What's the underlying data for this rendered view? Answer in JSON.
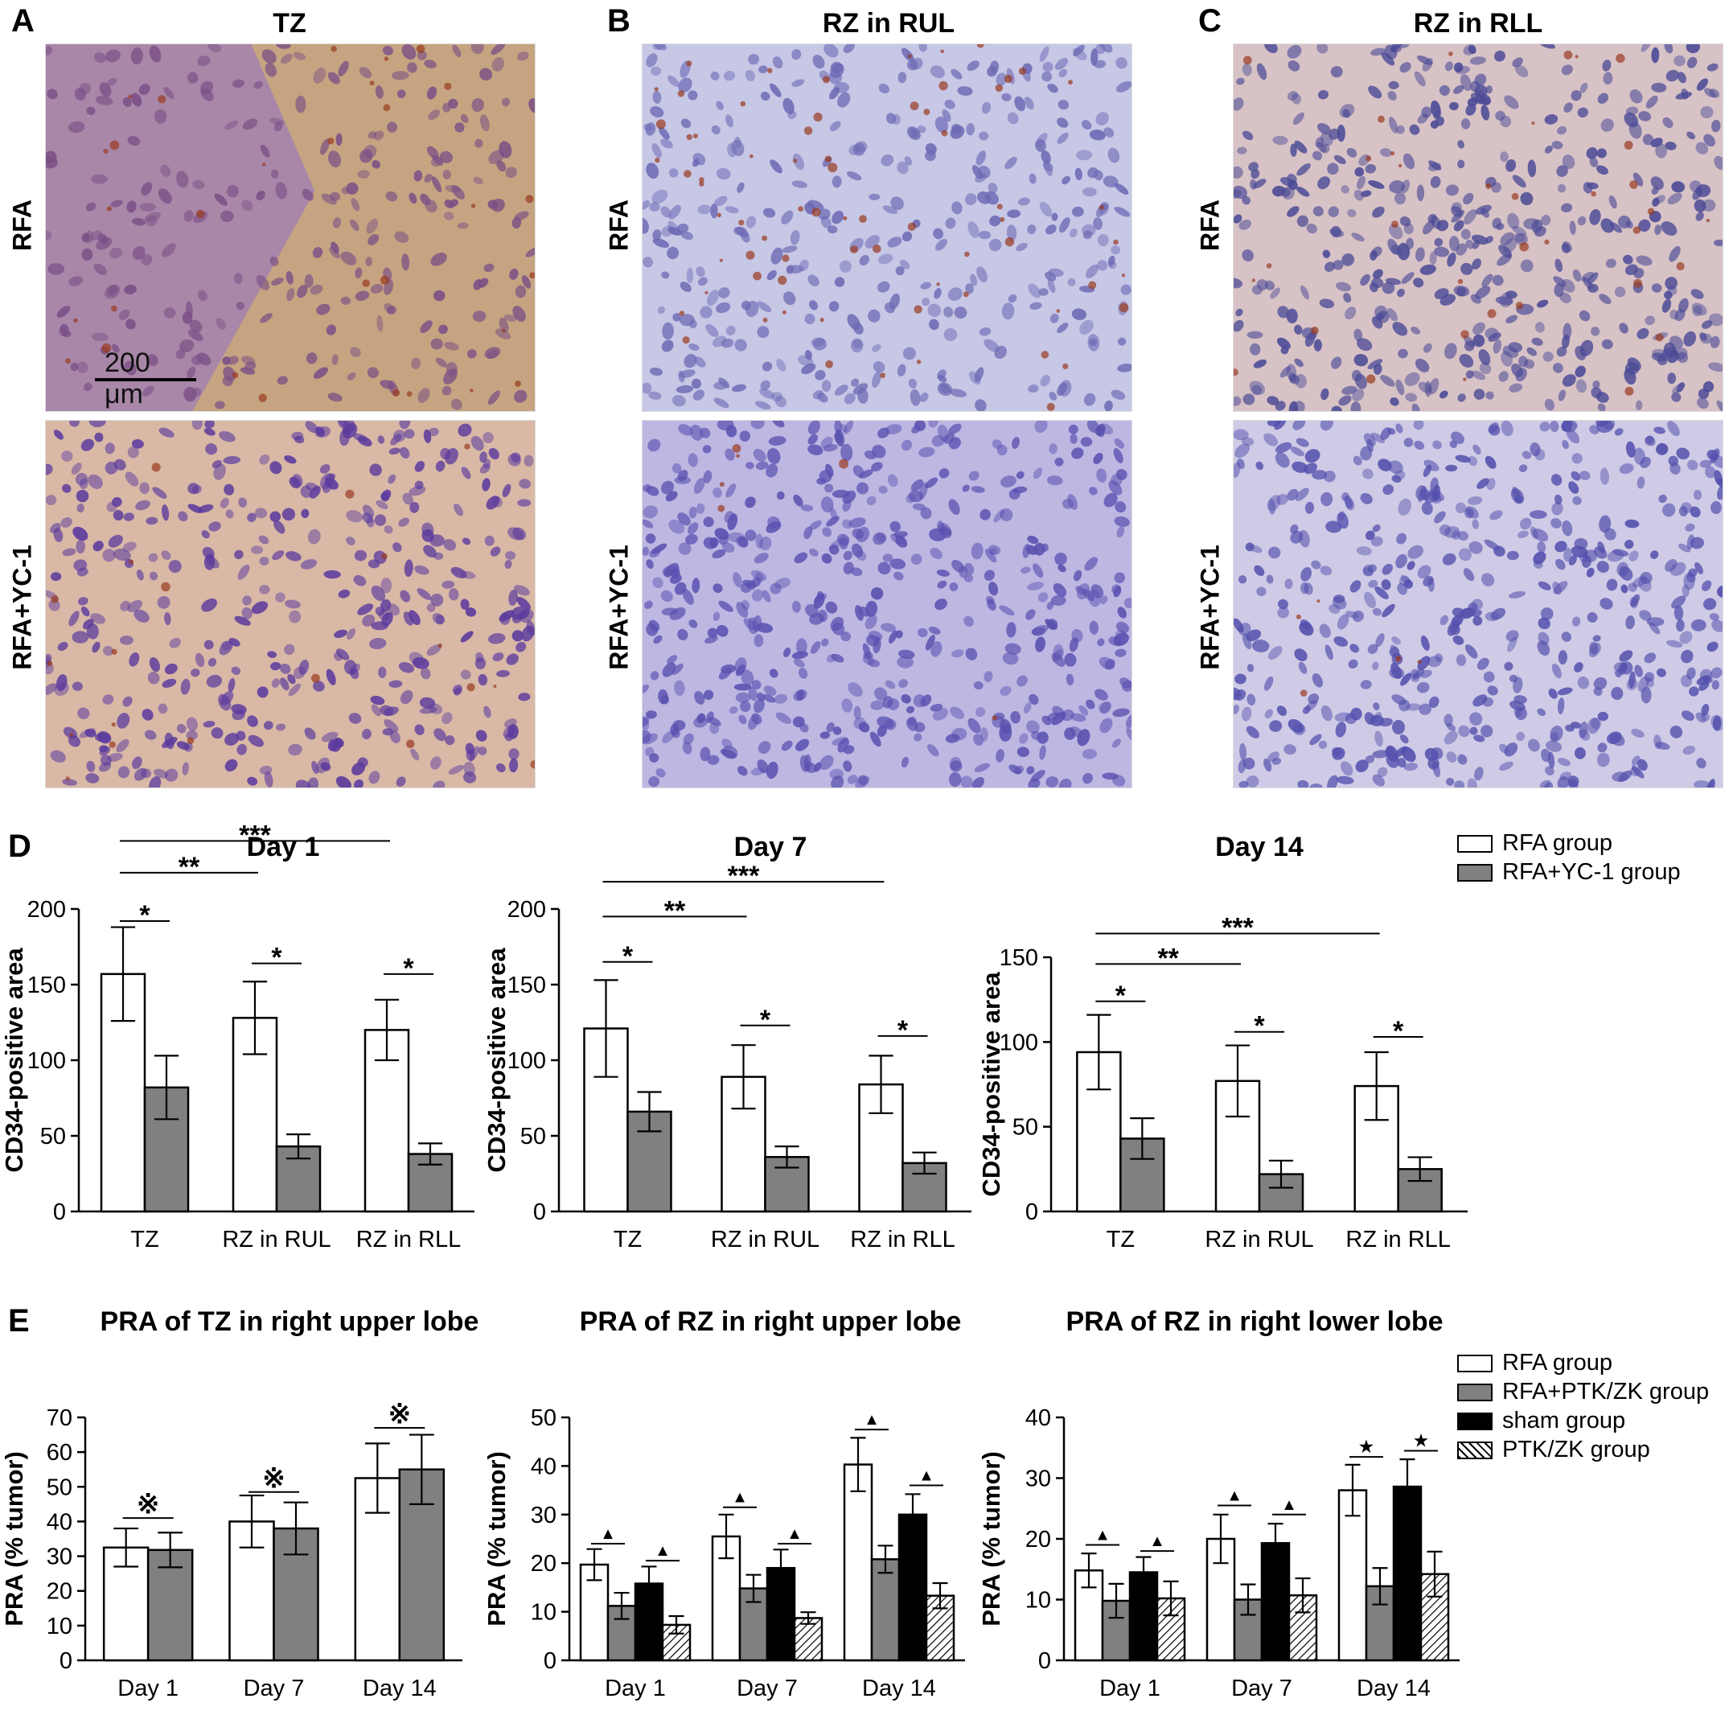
{
  "panel_labels": {
    "a": "A",
    "b": "B",
    "c": "C",
    "d": "D",
    "e": "E"
  },
  "micro": {
    "columns": [
      "TZ",
      "RZ in RUL",
      "RZ in RLL"
    ],
    "rows": [
      "RFA",
      "RFA+YC-1"
    ],
    "scale_bar": "200 μm",
    "tissue_colors": {
      "brown_bg": "#c9a77c",
      "purple_bg": "#a887a8",
      "blue_bg": "#c7c7e6",
      "nucleus": "#5b3a9e",
      "stain": "#9a3a1f"
    }
  },
  "legend_d": [
    {
      "label": "RFA group",
      "fill": "#ffffff"
    },
    {
      "label": "RFA+YC-1 group",
      "fill": "#808080"
    }
  ],
  "legend_e": [
    {
      "label": "RFA group",
      "fill": "#ffffff"
    },
    {
      "label": "RFA+PTK/ZK group",
      "fill": "#808080"
    },
    {
      "label": "sham group",
      "fill": "#000000"
    },
    {
      "label": "PTK/ZK group",
      "fill": "hatch"
    }
  ],
  "chart_data": [
    {
      "type": "bar",
      "panel": "D",
      "title": "Day 1",
      "ylabel": "CD34-positive area",
      "xlabel": "",
      "ylim": [
        0,
        200
      ],
      "yticks": [
        0,
        50,
        100,
        150,
        200
      ],
      "categories": [
        "TZ",
        "RZ in RUL",
        "RZ in RLL"
      ],
      "series": [
        {
          "name": "RFA group",
          "values": [
            157,
            128,
            120
          ],
          "errors": [
            31,
            24,
            20
          ]
        },
        {
          "name": "RFA+YC-1 group",
          "values": [
            82,
            43,
            38
          ],
          "errors": [
            21,
            8,
            7
          ]
        }
      ],
      "annotations": [
        {
          "type": "pair",
          "group": 0,
          "text": "*",
          "y": 192
        },
        {
          "type": "pair",
          "group": 1,
          "text": "*",
          "y": 164
        },
        {
          "type": "pair",
          "group": 2,
          "text": "*",
          "y": 157
        },
        {
          "type": "span",
          "from": 0,
          "to": 1,
          "text": "**",
          "y": 224
        },
        {
          "type": "span",
          "from": 0,
          "to": 2,
          "text": "***",
          "y": 245
        }
      ]
    },
    {
      "type": "bar",
      "panel": "D",
      "title": "Day 7",
      "ylabel": "CD34-positive area",
      "xlabel": "",
      "ylim": [
        0,
        200
      ],
      "yticks": [
        0,
        50,
        100,
        150,
        200
      ],
      "categories": [
        "TZ",
        "RZ in RUL",
        "RZ in RLL"
      ],
      "series": [
        {
          "name": "RFA group",
          "values": [
            121,
            89,
            84
          ],
          "errors": [
            32,
            21,
            19
          ]
        },
        {
          "name": "RFA+YC-1 group",
          "values": [
            66,
            36,
            32
          ],
          "errors": [
            13,
            7,
            7
          ]
        }
      ],
      "annotations": [
        {
          "type": "pair",
          "group": 0,
          "text": "*",
          "y": 165
        },
        {
          "type": "pair",
          "group": 1,
          "text": "*",
          "y": 123
        },
        {
          "type": "pair",
          "group": 2,
          "text": "*",
          "y": 116
        },
        {
          "type": "span",
          "from": 0,
          "to": 1,
          "text": "**",
          "y": 195
        },
        {
          "type": "span",
          "from": 0,
          "to": 2,
          "text": "***",
          "y": 218
        }
      ]
    },
    {
      "type": "bar",
      "panel": "D",
      "title": "Day 14",
      "ylabel": "CD34-positive area",
      "xlabel": "",
      "ylim": [
        0,
        150
      ],
      "yticks": [
        0,
        50,
        100,
        150
      ],
      "categories": [
        "TZ",
        "RZ in RUL",
        "RZ in RLL"
      ],
      "series": [
        {
          "name": "RFA group",
          "values": [
            94,
            77,
            74
          ],
          "errors": [
            22,
            21,
            20
          ]
        },
        {
          "name": "RFA+YC-1 group",
          "values": [
            43,
            22,
            25
          ],
          "errors": [
            12,
            8,
            7
          ]
        }
      ],
      "annotations": [
        {
          "type": "pair",
          "group": 0,
          "text": "*",
          "y": 124
        },
        {
          "type": "pair",
          "group": 1,
          "text": "*",
          "y": 106
        },
        {
          "type": "pair",
          "group": 2,
          "text": "*",
          "y": 103
        },
        {
          "type": "span",
          "from": 0,
          "to": 1,
          "text": "**",
          "y": 146
        },
        {
          "type": "span",
          "from": 0,
          "to": 2,
          "text": "***",
          "y": 164
        }
      ]
    },
    {
      "type": "bar",
      "panel": "E",
      "title": "PRA of TZ in right upper lobe",
      "ylabel": "PRA (% tumor)",
      "xlabel": "",
      "ylim": [
        0,
        70
      ],
      "yticks": [
        0,
        10,
        20,
        30,
        40,
        50,
        60,
        70
      ],
      "categories": [
        "Day 1",
        "Day 7",
        "Day 14"
      ],
      "series": [
        {
          "name": "RFA group",
          "values": [
            32.5,
            40,
            52.5
          ],
          "errors": [
            5.5,
            7.5,
            10
          ]
        },
        {
          "name": "RFA+PTK/ZK group",
          "values": [
            31.8,
            38,
            55
          ],
          "errors": [
            5,
            7.5,
            10
          ]
        }
      ],
      "annotations": [
        {
          "type": "pair",
          "group": 0,
          "text": "※",
          "y": 41
        },
        {
          "type": "pair",
          "group": 1,
          "text": "※",
          "y": 48.5
        },
        {
          "type": "pair",
          "group": 2,
          "text": "※",
          "y": 67
        }
      ]
    },
    {
      "type": "bar",
      "panel": "E",
      "title": "PRA of RZ in right upper lobe",
      "ylabel": "PRA (% tumor)",
      "xlabel": "",
      "ylim": [
        0,
        50
      ],
      "yticks": [
        0,
        10,
        20,
        30,
        40,
        50
      ],
      "categories": [
        "Day 1",
        "Day 7",
        "Day 14"
      ],
      "series": [
        {
          "name": "RFA group",
          "values": [
            19.7,
            25.5,
            40.3
          ],
          "errors": [
            3.2,
            4.5,
            5.5
          ]
        },
        {
          "name": "RFA+PTK/ZK group",
          "values": [
            11.2,
            14.8,
            20.8
          ],
          "errors": [
            2.7,
            2.8,
            2.8
          ]
        },
        {
          "name": "sham group",
          "values": [
            15.8,
            19,
            30
          ],
          "errors": [
            3.5,
            3.8,
            4.2
          ]
        },
        {
          "name": "PTK/ZK group",
          "values": [
            7.3,
            8.7,
            13.3
          ],
          "errors": [
            1.8,
            1.2,
            2.6
          ]
        }
      ],
      "annotations": [
        {
          "type": "quad",
          "group": 0,
          "a": 0,
          "b": 1,
          "text": "▲",
          "y": 24
        },
        {
          "type": "quad",
          "group": 0,
          "a": 2,
          "b": 3,
          "text": "▲",
          "y": 20.5
        },
        {
          "type": "quad",
          "group": 1,
          "a": 0,
          "b": 1,
          "text": "▲",
          "y": 31.5
        },
        {
          "type": "quad",
          "group": 1,
          "a": 2,
          "b": 3,
          "text": "▲",
          "y": 24
        },
        {
          "type": "quad",
          "group": 2,
          "a": 0,
          "b": 1,
          "text": "▲",
          "y": 47.5
        },
        {
          "type": "quad",
          "group": 2,
          "a": 2,
          "b": 3,
          "text": "▲",
          "y": 36
        }
      ]
    },
    {
      "type": "bar",
      "panel": "E",
      "title": "PRA of RZ in right lower lobe",
      "ylabel": "PRA (% tumor)",
      "xlabel": "",
      "ylim": [
        0,
        40
      ],
      "yticks": [
        0,
        10,
        20,
        30,
        40
      ],
      "categories": [
        "Day 1",
        "Day 7",
        "Day 14"
      ],
      "series": [
        {
          "name": "RFA group",
          "values": [
            14.8,
            20,
            28
          ],
          "errors": [
            2.8,
            4,
            4.2
          ]
        },
        {
          "name": "RFA+PTK/ZK group",
          "values": [
            9.8,
            10,
            12.2
          ],
          "errors": [
            2.8,
            2.5,
            3
          ]
        },
        {
          "name": "sham group",
          "values": [
            14.5,
            19.3,
            28.6
          ],
          "errors": [
            2.5,
            3.2,
            4.5
          ]
        },
        {
          "name": "PTK/ZK group",
          "values": [
            10.2,
            10.7,
            14.2
          ],
          "errors": [
            2.8,
            2.8,
            3.7
          ]
        }
      ],
      "annotations": [
        {
          "type": "quad",
          "group": 0,
          "a": 0,
          "b": 1,
          "text": "▲",
          "y": 19
        },
        {
          "type": "quad",
          "group": 0,
          "a": 2,
          "b": 3,
          "text": "▲",
          "y": 18
        },
        {
          "type": "quad",
          "group": 1,
          "a": 0,
          "b": 1,
          "text": "▲",
          "y": 25.5
        },
        {
          "type": "quad",
          "group": 1,
          "a": 2,
          "b": 3,
          "text": "▲",
          "y": 24
        },
        {
          "type": "quad",
          "group": 2,
          "a": 0,
          "b": 1,
          "text": "★",
          "y": 33.5
        },
        {
          "type": "quad",
          "group": 2,
          "a": 2,
          "b": 3,
          "text": "★",
          "y": 34.5
        }
      ]
    }
  ]
}
